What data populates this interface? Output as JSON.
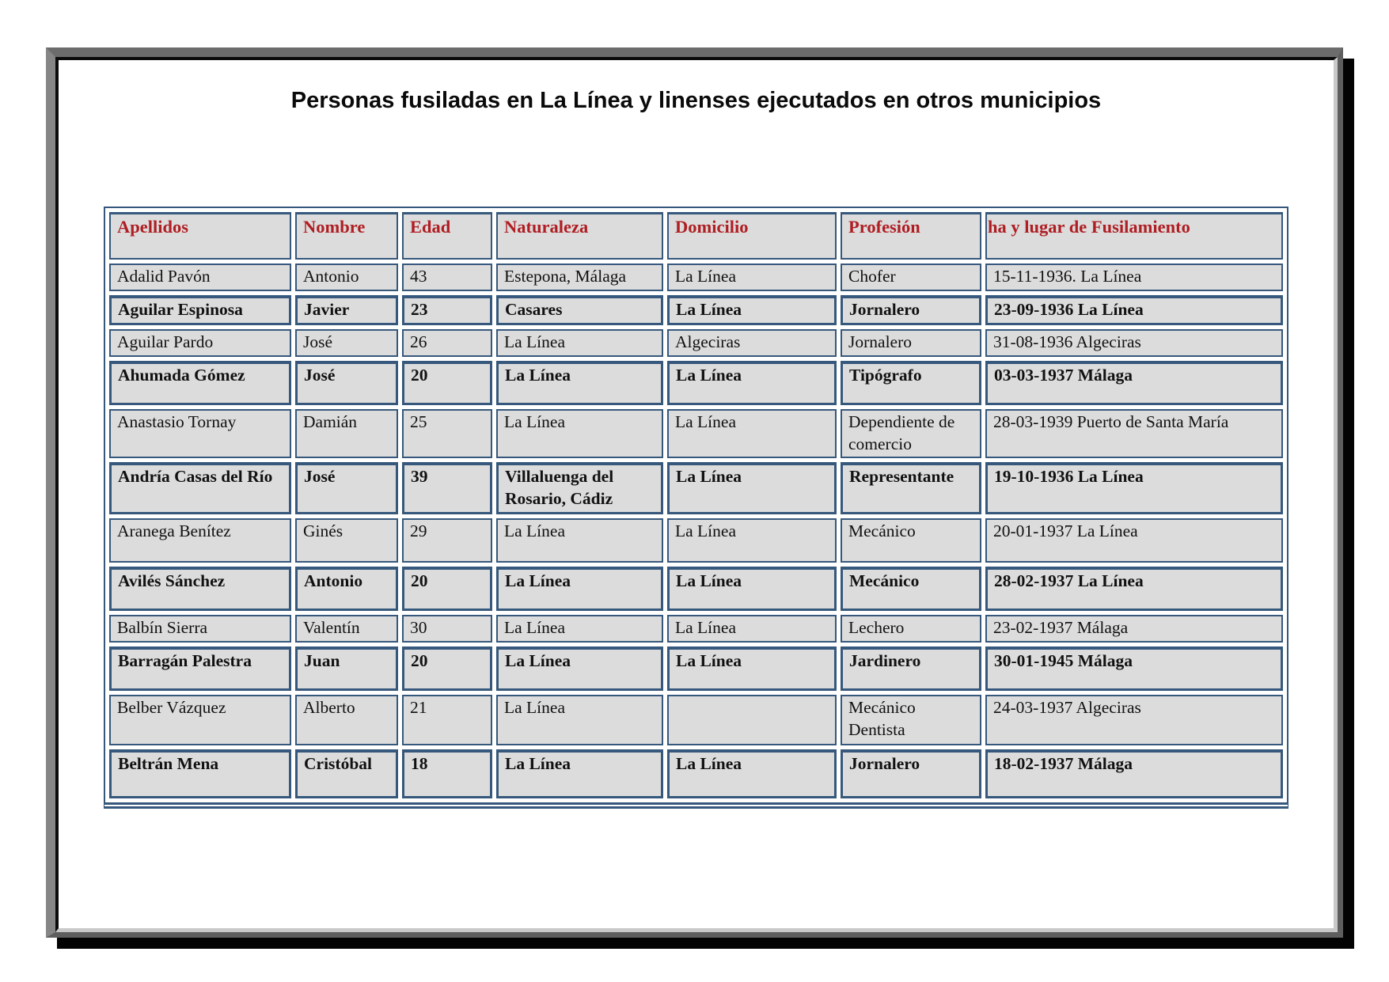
{
  "title": "Personas fusiladas en La Línea y linenses ejecutados en otros municipios",
  "colors": {
    "header_text": "#af1e23",
    "table_border": "#36587c",
    "cell_background": "#dcdcdc"
  },
  "table": {
    "headers": [
      "Apellidos",
      "Nombre",
      "Edad",
      "Naturaleza",
      "Domicilio",
      "Profesión",
      "ha y lugar de Fusilamiento"
    ],
    "rows": [
      [
        "Adalid Pavón",
        "Antonio",
        "43",
        "Estepona, Málaga",
        "La Línea",
        "Chofer",
        "15-11-1936. La Línea"
      ],
      [
        "Aguilar Espinosa",
        "Javier",
        "23",
        "Casares",
        "La Línea",
        "Jornalero",
        "23-09-1936 La Línea"
      ],
      [
        "Aguilar Pardo",
        "José",
        "26",
        "La Línea",
        "Algeciras",
        "Jornalero",
        "31-08-1936 Algeciras"
      ],
      [
        "Ahumada Gómez",
        "José",
        "20",
        "La Línea",
        "La Línea",
        "Tipógrafo",
        "03-03-1937 Málaga"
      ],
      [
        "Anastasio Tornay",
        "Damián",
        "25",
        "La Línea",
        "La Línea",
        "Dependiente de comercio",
        "28-03-1939 Puerto de Santa María"
      ],
      [
        "Andría Casas del Río",
        "José",
        "39",
        "Villaluenga del Rosario, Cádiz",
        "La Línea",
        "Representante",
        "19-10-1936 La Línea"
      ],
      [
        "Aranega Benítez",
        "Ginés",
        "29",
        "La Línea",
        "La Línea",
        "Mecánico",
        "20-01-1937 La Línea"
      ],
      [
        "Avilés Sánchez",
        "Antonio",
        "20",
        "La Línea",
        "La Línea",
        "Mecánico",
        "28-02-1937 La Línea"
      ],
      [
        "Balbín Sierra",
        "Valentín",
        "30",
        "La Línea",
        "La Línea",
        "Lechero",
        "23-02-1937 Málaga"
      ],
      [
        "Barragán Palestra",
        "Juan",
        "20",
        "La Línea",
        "La Línea",
        "Jardinero",
        "30-01-1945 Málaga"
      ],
      [
        "Belber Vázquez",
        "Alberto",
        "21",
        "La Línea",
        "",
        "Mecánico Dentista",
        "24-03-1937 Algeciras"
      ],
      [
        "Beltrán Mena",
        "Cristóbal",
        "18",
        "La Línea",
        "La Línea",
        "Jornalero",
        "18-02-1937 Málaga"
      ]
    ]
  }
}
